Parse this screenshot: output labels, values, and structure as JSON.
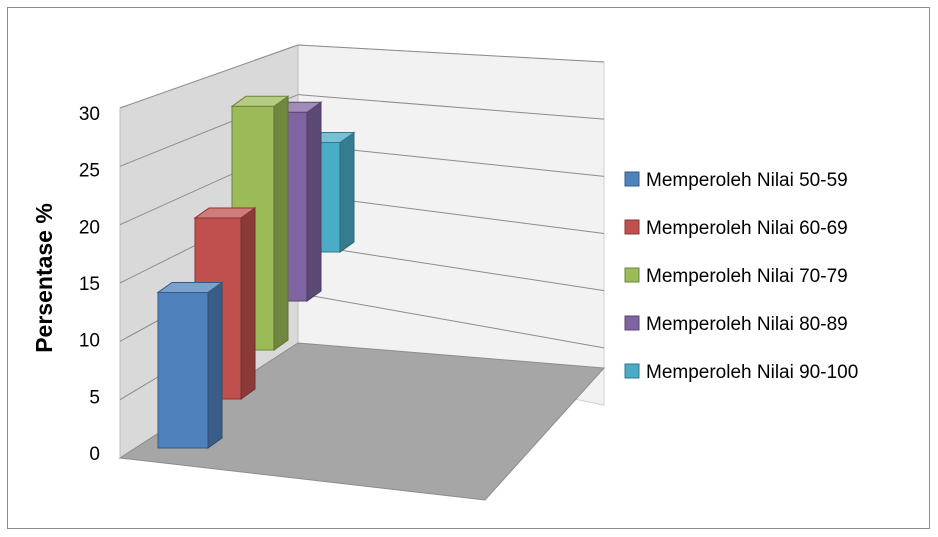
{
  "chart_data": {
    "type": "bar",
    "title": "",
    "xlabel": "",
    "ylabel": "Persentase %",
    "ylim": [
      0,
      30
    ],
    "yticks": [
      0,
      5,
      10,
      15,
      20,
      25,
      30
    ],
    "grid": true,
    "legend_position": "right",
    "series": [
      {
        "name": "Memperoleh Nilai 50-59",
        "values": [
          15
        ],
        "color": "#4f81bd"
      },
      {
        "name": "Memperoleh Nilai 60-69",
        "values": [
          18
        ],
        "color": "#c0504d"
      },
      {
        "name": "Memperoleh Nilai 70-79",
        "values": [
          25
        ],
        "color": "#9bbb59"
      },
      {
        "name": "Memperoleh Nilai 80-89",
        "values": [
          20
        ],
        "color": "#8064a2"
      },
      {
        "name": "Memperoleh Nilai 90-100",
        "values": [
          12
        ],
        "color": "#4bacc6"
      }
    ]
  }
}
